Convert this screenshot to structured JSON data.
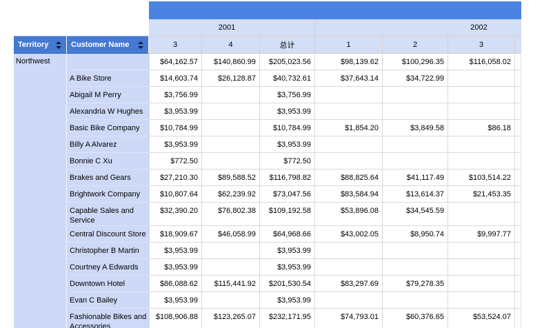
{
  "header": {
    "territory_label": "Territory",
    "customer_label": "Customer Name",
    "year_groups": [
      {
        "label": "2001"
      },
      {
        "label": "2002"
      }
    ],
    "month_columns": [
      "3",
      "4",
      "总计",
      "1",
      "2",
      "3"
    ]
  },
  "territory": "Northwest",
  "rows": [
    {
      "customer": "",
      "values": [
        "$64,162.57",
        "$140,860.99",
        "$205,023.56",
        "$98,139.62",
        "$100,296.35",
        "$116,058.02"
      ],
      "tall": false
    },
    {
      "customer": "A Bike Store",
      "values": [
        "$14,603.74",
        "$26,128.87",
        "$40,732.61",
        "$37,643.14",
        "$34,722.99",
        ""
      ],
      "tall": false
    },
    {
      "customer": "Abigail M Perry",
      "values": [
        "$3,756.99",
        "",
        "$3,756.99",
        "",
        "",
        ""
      ],
      "tall": false
    },
    {
      "customer": "Alexandria W Hughes",
      "values": [
        "$3,953.99",
        "",
        "$3,953.99",
        "",
        "",
        ""
      ],
      "tall": false
    },
    {
      "customer": "Basic Bike Company",
      "values": [
        "$10,784.99",
        "",
        "$10,784.99",
        "$1,854.20",
        "$3,849.58",
        "$86.18"
      ],
      "tall": false
    },
    {
      "customer": "Billy A Alvarez",
      "values": [
        "$3,953.99",
        "",
        "$3,953.99",
        "",
        "",
        ""
      ],
      "tall": false
    },
    {
      "customer": "Bonnie C Xu",
      "values": [
        "$772.50",
        "",
        "$772.50",
        "",
        "",
        ""
      ],
      "tall": false
    },
    {
      "customer": "Brakes and Gears",
      "values": [
        "$27,210.30",
        "$89,588.52",
        "$116,798.82",
        "$88,825.64",
        "$41,117.49",
        "$103,514.22"
      ],
      "tall": false
    },
    {
      "customer": "Brightwork Company",
      "values": [
        "$10,807.64",
        "$62,239.92",
        "$73,047.56",
        "$83,584.94",
        "$13,614.37",
        "$21,453.35"
      ],
      "tall": false
    },
    {
      "customer": "Capable Sales and Service",
      "values": [
        "$32,390.20",
        "$76,802.38",
        "$109,192.58",
        "$53,896.08",
        "$34,545.59",
        ""
      ],
      "tall": true
    },
    {
      "customer": "Central Discount Store",
      "values": [
        "$18,909.67",
        "$46,058.99",
        "$64,968.66",
        "$43,002.05",
        "$8,950.74",
        "$9,997.77"
      ],
      "tall": false
    },
    {
      "customer": "Christopher B Martin",
      "values": [
        "$3,953.99",
        "",
        "$3,953.99",
        "",
        "",
        ""
      ],
      "tall": false
    },
    {
      "customer": "Courtney A Edwards",
      "values": [
        "$3,953.99",
        "",
        "$3,953.99",
        "",
        "",
        ""
      ],
      "tall": false
    },
    {
      "customer": "Downtown Hotel",
      "values": [
        "$86,088.62",
        "$115,441.92",
        "$201,530.54",
        "$83,297.69",
        "$79,278.35",
        ""
      ],
      "tall": false
    },
    {
      "customer": "Evan C Bailey",
      "values": [
        "$3,953.99",
        "",
        "$3,953.99",
        "",
        "",
        ""
      ],
      "tall": false
    },
    {
      "customer": "Fashionable Bikes and Accessories",
      "values": [
        "$108,906.88",
        "$123,265.07",
        "$232,171.95",
        "$74,793.01",
        "$60,376.65",
        "$53,524.07"
      ],
      "tall": true
    }
  ],
  "colors": {
    "band": "#4a83e3",
    "header_blue": "#4679d2",
    "header_light": "#d3def7",
    "label_cell": "#cdd9f6",
    "grid_line": "#d9d9d9"
  }
}
